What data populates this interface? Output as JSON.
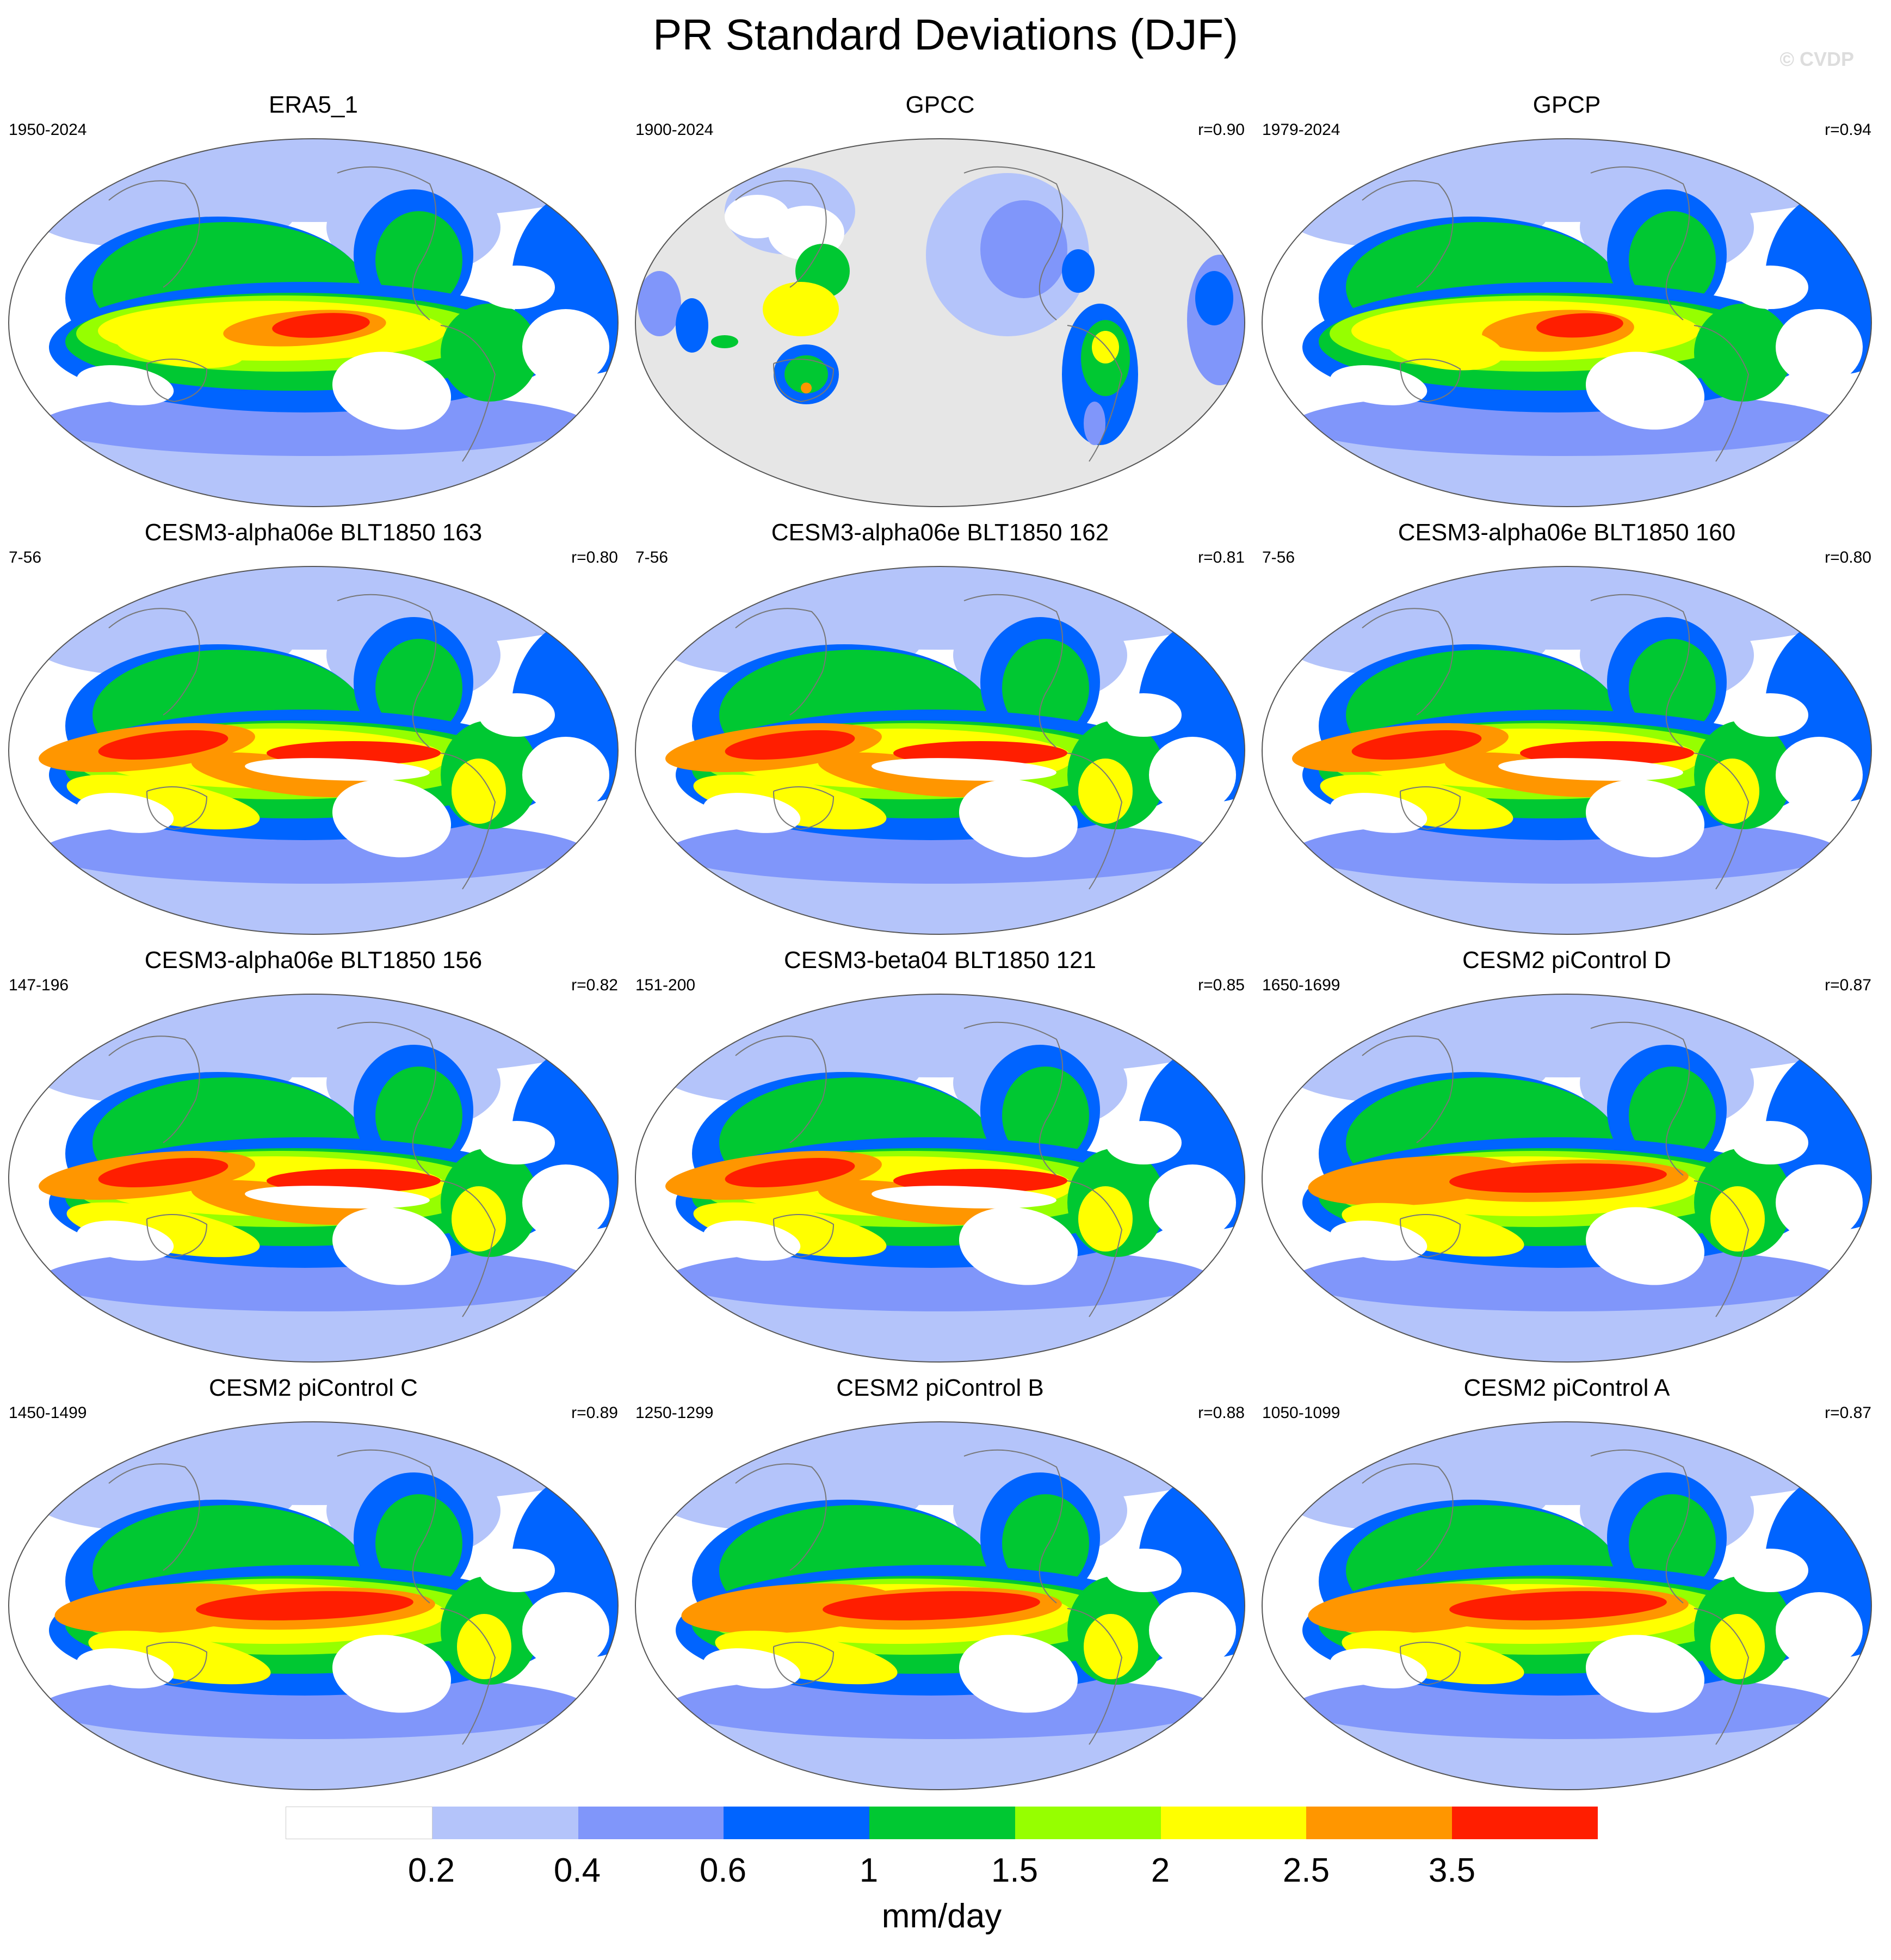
{
  "title": "PR Standard Deviations (DJF)",
  "watermark": "© CVDP",
  "panels": [
    {
      "title": "ERA5_1",
      "period": "1950-2024",
      "corr": "",
      "land_only": false,
      "pattern": "obs_era5"
    },
    {
      "title": "GPCC",
      "period": "1900-2024",
      "corr": "r=0.90",
      "land_only": true,
      "pattern": "obs_gpcc"
    },
    {
      "title": "GPCP",
      "period": "1979-2024",
      "corr": "r=0.94",
      "land_only": false,
      "pattern": "obs_gpcp"
    },
    {
      "title": "CESM3-alpha06e BLT1850 163",
      "period": "7-56",
      "corr": "r=0.80",
      "land_only": false,
      "pattern": "model_split"
    },
    {
      "title": "CESM3-alpha06e BLT1850 162",
      "period": "7-56",
      "corr": "r=0.81",
      "land_only": false,
      "pattern": "model_split"
    },
    {
      "title": "CESM3-alpha06e BLT1850 160",
      "period": "7-56",
      "corr": "r=0.80",
      "land_only": false,
      "pattern": "model_split"
    },
    {
      "title": "CESM3-alpha06e BLT1850 156",
      "period": "147-196",
      "corr": "r=0.82",
      "land_only": false,
      "pattern": "model_split"
    },
    {
      "title": "CESM3-beta04 BLT1850 121",
      "period": "151-200",
      "corr": "r=0.85",
      "land_only": false,
      "pattern": "model_split"
    },
    {
      "title": "CESM2 piControl D",
      "period": "1650-1699",
      "corr": "r=0.87",
      "land_only": false,
      "pattern": "model_strong"
    },
    {
      "title": "CESM2 piControl C",
      "period": "1450-1499",
      "corr": "r=0.89",
      "land_only": false,
      "pattern": "model_strong"
    },
    {
      "title": "CESM2 piControl B",
      "period": "1250-1299",
      "corr": "r=0.88",
      "land_only": false,
      "pattern": "model_strong"
    },
    {
      "title": "CESM2 piControl A",
      "period": "1050-1099",
      "corr": "r=0.87",
      "land_only": false,
      "pattern": "model_strong"
    }
  ],
  "colorbar": {
    "units": "mm/day",
    "levels": [
      "0.2",
      "0.4",
      "0.6",
      "1",
      "1.5",
      "2",
      "2.5",
      "3.5"
    ],
    "colors": [
      "#ffffff",
      "#b4c4fa",
      "#8096fa",
      "#0064ff",
      "#00c832",
      "#96ff00",
      "#ffff00",
      "#ff9600",
      "#ff1e00"
    ]
  },
  "missing_color": "#e6e6e6"
}
